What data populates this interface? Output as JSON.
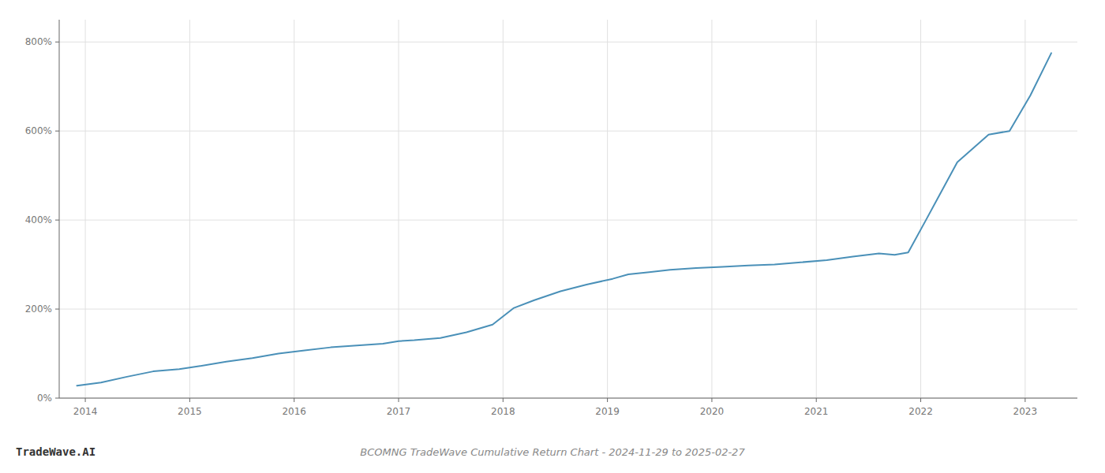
{
  "chart_data": {
    "type": "line",
    "title": "BCOMNG TradeWave Cumulative Return Chart - 2024-11-29 to 2025-02-27",
    "annotations": [
      "TradeWave.AI"
    ],
    "x": [
      2013.92,
      2014.15,
      2014.4,
      2014.65,
      2014.9,
      2015.1,
      2015.35,
      2015.6,
      2015.85,
      2016.1,
      2016.35,
      2016.6,
      2016.85,
      2017.0,
      2017.15,
      2017.4,
      2017.65,
      2017.9,
      2018.1,
      2018.3,
      2018.55,
      2018.8,
      2019.05,
      2019.2,
      2019.4,
      2019.6,
      2019.85,
      2020.1,
      2020.35,
      2020.6,
      2020.85,
      2021.1,
      2021.35,
      2021.6,
      2021.75,
      2021.88,
      2022.05,
      2022.35,
      2022.65,
      2022.85,
      2023.05,
      2023.25
    ],
    "values": [
      28,
      35,
      48,
      60,
      65,
      72,
      82,
      90,
      100,
      107,
      114,
      118,
      122,
      128,
      130,
      135,
      148,
      165,
      202,
      220,
      240,
      255,
      268,
      278,
      283,
      288,
      292,
      295,
      298,
      300,
      305,
      310,
      318,
      325,
      322,
      327,
      400,
      530,
      592,
      600,
      680,
      775
    ],
    "color": "#4a90b8",
    "xlim": [
      2013.75,
      2023.5
    ],
    "xticks": [
      2014,
      2015,
      2016,
      2017,
      2018,
      2019,
      2020,
      2021,
      2022,
      2023
    ],
    "ylim": [
      0,
      850
    ],
    "yticks": [
      {
        "value": 0,
        "label": "0%"
      },
      {
        "value": 200,
        "label": "200%"
      },
      {
        "value": 400,
        "label": "400%"
      },
      {
        "value": 600,
        "label": "600%"
      },
      {
        "value": 800,
        "label": "800%"
      }
    ],
    "grid": true
  }
}
